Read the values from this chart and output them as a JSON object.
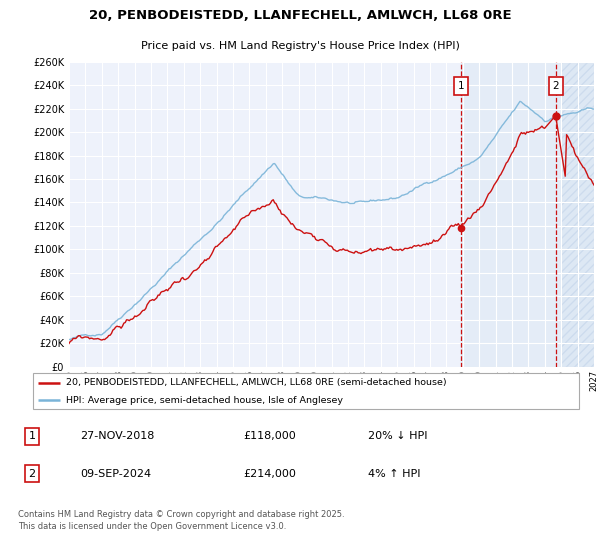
{
  "title": "20, PENBODEISTEDD, LLANFECHELL, AMLWCH, LL68 0RE",
  "subtitle": "Price paid vs. HM Land Registry's House Price Index (HPI)",
  "legend_line1": "20, PENBODEISTEDD, LLANFECHELL, AMLWCH, LL68 0RE (semi-detached house)",
  "legend_line2": "HPI: Average price, semi-detached house, Isle of Anglesey",
  "sale1_date": "27-NOV-2018",
  "sale1_price": 118000,
  "sale1_pct": "20% ↓ HPI",
  "sale2_date": "09-SEP-2024",
  "sale2_price": 214000,
  "sale2_pct": "4% ↑ HPI",
  "footer": "Contains HM Land Registry data © Crown copyright and database right 2025.\nThis data is licensed under the Open Government Licence v3.0.",
  "hpi_color": "#7ab4d8",
  "price_color": "#cc1111",
  "vline_color": "#cc1111",
  "bg_chart": "#eef2fb",
  "ylim": [
    0,
    260000
  ],
  "ytick_step": 20000,
  "xstart": 1995,
  "xend": 2027,
  "sale1_t": 2018.917,
  "sale2_t": 2024.667
}
